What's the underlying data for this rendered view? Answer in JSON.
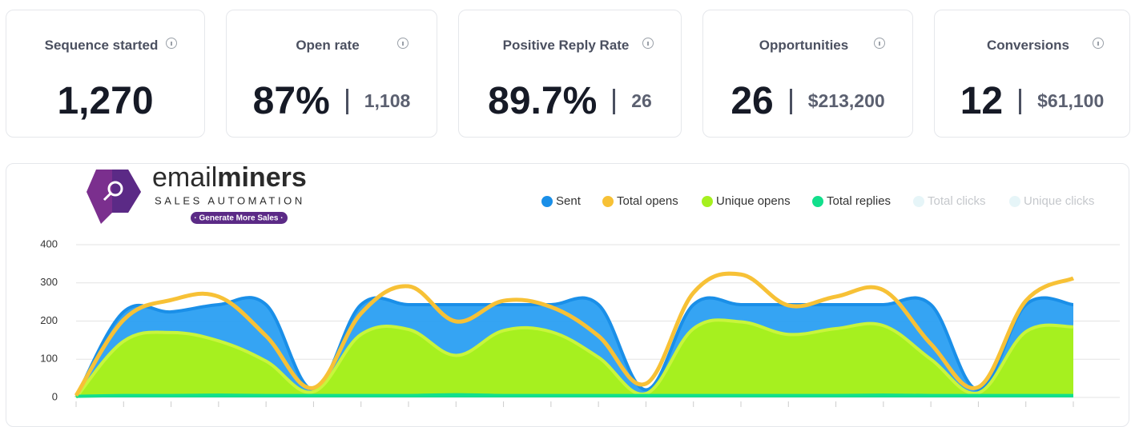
{
  "cards": [
    {
      "title": "Sequence started",
      "value": "1,270"
    },
    {
      "title": "Open rate",
      "value": "87%",
      "secondary": "1,108"
    },
    {
      "title": "Positive Reply Rate",
      "value": "89.7%",
      "secondary": "26"
    },
    {
      "title": "Opportunities",
      "value": "26",
      "secondary": "$213,200"
    },
    {
      "title": "Conversions",
      "value": "12",
      "secondary": "$61,100"
    }
  ],
  "logo": {
    "name_light": "email",
    "name_bold": "miners",
    "tagline": "SALES AUTOMATION",
    "badge": "· Generate More Sales ·"
  },
  "chart_data": {
    "type": "area",
    "categories": [
      null,
      null,
      null,
      null,
      null,
      null,
      null,
      null,
      null,
      null,
      null,
      null,
      null,
      null,
      null,
      null,
      null,
      null,
      null,
      null,
      null,
      null
    ],
    "series": [
      {
        "name": "Sent",
        "color": "#1a8fe8",
        "values": [
          0,
          224,
          224,
          243,
          243,
          20,
          243,
          243,
          243,
          243,
          243,
          243,
          20,
          243,
          243,
          243,
          243,
          243,
          243,
          20,
          243,
          243
        ]
      },
      {
        "name": "Total opens",
        "color": "#f7c136",
        "values": [
          5,
          203,
          255,
          264,
          161,
          25,
          220,
          291,
          199,
          253,
          237,
          161,
          36,
          274,
          322,
          241,
          264,
          281,
          140,
          27,
          253,
          312
        ]
      },
      {
        "name": "Unique opens",
        "color": "#a6f01f",
        "values": [
          0,
          147,
          170,
          148,
          95,
          15,
          165,
          178,
          110,
          175,
          172,
          105,
          10,
          180,
          198,
          165,
          180,
          188,
          100,
          12,
          172,
          185
        ]
      },
      {
        "name": "Total replies",
        "color": "#12df8c",
        "values": [
          3,
          5,
          5,
          6,
          5,
          5,
          5,
          5,
          7,
          5,
          5,
          5,
          5,
          5,
          5,
          5,
          5,
          6,
          5,
          5,
          5,
          5
        ]
      },
      {
        "name": "Total clicks",
        "color": "#e6f5f8",
        "hidden": true
      },
      {
        "name": "Unique clicks",
        "color": "#e6f5f8",
        "hidden": true
      }
    ],
    "ylim": [
      0,
      400
    ],
    "yticks": [
      0,
      100,
      200,
      300,
      400
    ],
    "grid": true
  }
}
